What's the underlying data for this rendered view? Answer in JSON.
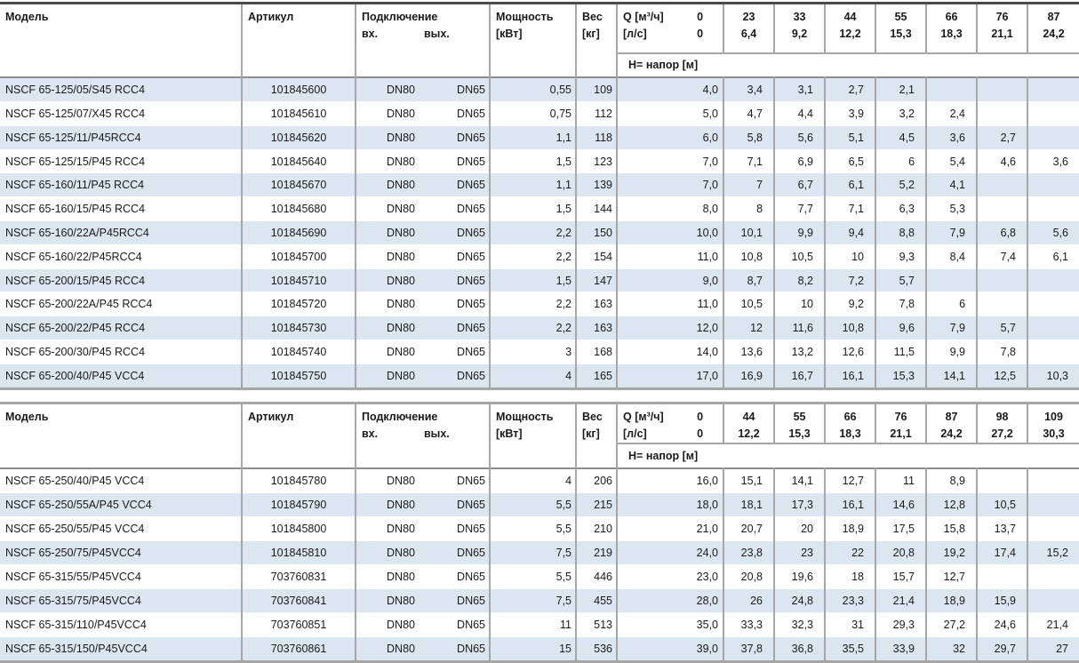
{
  "colors": {
    "row_shade": "#dce6f1",
    "grid_line": "#a6a6a6",
    "header_rule": "#8c8c8c",
    "table1_top_border": "#4a4a4a",
    "text": "#1a1a1a"
  },
  "tables": [
    {
      "headers": {
        "model": "Модель",
        "article": "Артикул",
        "connection": "Подключение",
        "inlet": "вх.",
        "outlet": "вых.",
        "power": "Мощность",
        "power_unit": "[кВт]",
        "weight": "Вес",
        "weight_unit": "[кг]",
        "q_m3": "Q [м³/ч]",
        "q_m3_zero": "0",
        "q_ls": "[л/с]",
        "q_ls_zero": "0",
        "head": "Н= напор [м]"
      },
      "flow_m3": [
        "23",
        "33",
        "44",
        "55",
        "66",
        "76",
        "87"
      ],
      "flow_ls": [
        "6,4",
        "9,2",
        "12,2",
        "15,3",
        "18,3",
        "21,1",
        "24,2"
      ],
      "first_row_shaded": true,
      "rows": [
        {
          "model": "NSCF 65-125/05/S45 RCC4",
          "article": "101845600",
          "inlet": "DN80",
          "outlet": "DN65",
          "power": "0,55",
          "weight": "109",
          "heads": [
            "4,0",
            "3,4",
            "3,1",
            "2,7",
            "2,1",
            "",
            "",
            ""
          ]
        },
        {
          "model": "NSCF 65-125/07/X45 RCC4",
          "article": "101845610",
          "inlet": "DN80",
          "outlet": "DN65",
          "power": "0,75",
          "weight": "112",
          "heads": [
            "5,0",
            "4,7",
            "4,4",
            "3,9",
            "3,2",
            "2,4",
            "",
            ""
          ]
        },
        {
          "model": "NSCF 65-125/11/P45RCC4",
          "article": "101845620",
          "inlet": "DN80",
          "outlet": "DN65",
          "power": "1,1",
          "weight": "118",
          "heads": [
            "6,0",
            "5,8",
            "5,6",
            "5,1",
            "4,5",
            "3,6",
            "2,7",
            ""
          ]
        },
        {
          "model": "NSCF 65-125/15/P45 RCC4",
          "article": "101845640",
          "inlet": "DN80",
          "outlet": "DN65",
          "power": "1,5",
          "weight": "123",
          "heads": [
            "7,0",
            "7,1",
            "6,9",
            "6,5",
            "6",
            "5,4",
            "4,6",
            "3,6"
          ]
        },
        {
          "model": "NSCF 65-160/11/P45 RCC4",
          "article": "101845670",
          "inlet": "DN80",
          "outlet": "DN65",
          "power": "1,1",
          "weight": "139",
          "heads": [
            "7,0",
            "7",
            "6,7",
            "6,1",
            "5,2",
            "4,1",
            "",
            ""
          ]
        },
        {
          "model": "NSCF 65-160/15/P45 RCC4",
          "article": "101845680",
          "inlet": "DN80",
          "outlet": "DN65",
          "power": "1,5",
          "weight": "144",
          "heads": [
            "8,0",
            "8",
            "7,7",
            "7,1",
            "6,3",
            "5,3",
            "",
            ""
          ]
        },
        {
          "model": "NSCF 65-160/22A/P45RCC4",
          "article": "101845690",
          "inlet": "DN80",
          "outlet": "DN65",
          "power": "2,2",
          "weight": "150",
          "heads": [
            "10,0",
            "10,1",
            "9,9",
            "9,4",
            "8,8",
            "7,9",
            "6,8",
            "5,6"
          ]
        },
        {
          "model": "NSCF 65-160/22/P45RCC4",
          "article": "101845700",
          "inlet": "DN80",
          "outlet": "DN65",
          "power": "2,2",
          "weight": "154",
          "heads": [
            "11,0",
            "10,8",
            "10,5",
            "10",
            "9,3",
            "8,4",
            "7,4",
            "6,1"
          ]
        },
        {
          "model": "NSCF 65-200/15/P45 RCC4",
          "article": "101845710",
          "inlet": "DN80",
          "outlet": "DN65",
          "power": "1,5",
          "weight": "147",
          "heads": [
            "9,0",
            "8,7",
            "8,2",
            "7,2",
            "5,7",
            "",
            "",
            ""
          ]
        },
        {
          "model": "NSCF 65-200/22A/P45 RCC4",
          "article": "101845720",
          "inlet": "DN80",
          "outlet": "DN65",
          "power": "2,2",
          "weight": "163",
          "heads": [
            "11,0",
            "10,5",
            "10",
            "9,2",
            "7,8",
            "6",
            "",
            ""
          ]
        },
        {
          "model": "NSCF 65-200/22/P45 RCC4",
          "article": "101845730",
          "inlet": "DN80",
          "outlet": "DN65",
          "power": "2,2",
          "weight": "163",
          "heads": [
            "12,0",
            "12",
            "11,6",
            "10,8",
            "9,6",
            "7,9",
            "5,7",
            ""
          ]
        },
        {
          "model": "NSCF 65-200/30/P45 RCC4",
          "article": "101845740",
          "inlet": "DN80",
          "outlet": "DN65",
          "power": "3",
          "weight": "168",
          "heads": [
            "14,0",
            "13,6",
            "13,2",
            "12,6",
            "11,5",
            "9,9",
            "7,8",
            ""
          ]
        },
        {
          "model": "NSCF 65-200/40/P45 VCC4",
          "article": "101845750",
          "inlet": "DN80",
          "outlet": "DN65",
          "power": "4",
          "weight": "165",
          "heads": [
            "17,0",
            "16,9",
            "16,7",
            "16,1",
            "15,3",
            "14,1",
            "12,5",
            "10,3"
          ]
        }
      ]
    },
    {
      "headers": {
        "model": "Модель",
        "article": "Артикул",
        "connection": "Подключение",
        "inlet": "вх.",
        "outlet": "вых.",
        "power": "Мощность",
        "power_unit": "[кВт]",
        "weight": "Вес",
        "weight_unit": "[кг]",
        "q_m3": "Q [м³/ч]",
        "q_m3_zero": "0",
        "q_ls": "[л/с]",
        "q_ls_zero": "0",
        "head": "Н= напор [м]"
      },
      "flow_m3": [
        "44",
        "55",
        "66",
        "76",
        "87",
        "98",
        "109"
      ],
      "flow_ls": [
        "12,2",
        "15,3",
        "18,3",
        "21,1",
        "24,2",
        "27,2",
        "30,3"
      ],
      "first_row_shaded": false,
      "rows": [
        {
          "model": "NSCF 65-250/40/P45 VCC4",
          "article": "101845780",
          "inlet": "DN80",
          "outlet": "DN65",
          "power": "4",
          "weight": "206",
          "heads": [
            "16,0",
            "15,1",
            "14,1",
            "12,7",
            "11",
            "8,9",
            "",
            ""
          ]
        },
        {
          "model": "NSCF 65-250/55A/P45 VCC4",
          "article": "101845790",
          "inlet": "DN80",
          "outlet": "DN65",
          "power": "5,5",
          "weight": "215",
          "heads": [
            "18,0",
            "18,1",
            "17,3",
            "16,1",
            "14,6",
            "12,8",
            "10,5",
            ""
          ]
        },
        {
          "model": "NSCF 65-250/55/P45 VCC4",
          "article": "101845800",
          "inlet": "DN80",
          "outlet": "DN65",
          "power": "5,5",
          "weight": "210",
          "heads": [
            "21,0",
            "20,7",
            "20",
            "18,9",
            "17,5",
            "15,8",
            "13,7",
            ""
          ]
        },
        {
          "model": "NSCF 65-250/75/P45VCC4",
          "article": "101845810",
          "inlet": "DN80",
          "outlet": "DN65",
          "power": "7,5",
          "weight": "219",
          "heads": [
            "24,0",
            "23,8",
            "23",
            "22",
            "20,8",
            "19,2",
            "17,4",
            "15,2"
          ]
        },
        {
          "model": "NSCF 65-315/55/P45VCC4",
          "article": "703760831",
          "inlet": "DN80",
          "outlet": "DN65",
          "power": "5,5",
          "weight": "446",
          "heads": [
            "23,0",
            "20,8",
            "19,6",
            "18",
            "15,7",
            "12,7",
            "",
            ""
          ]
        },
        {
          "model": "NSCF 65-315/75/P45VCC4",
          "article": "703760841",
          "inlet": "DN80",
          "outlet": "DN65",
          "power": "7,5",
          "weight": "455",
          "heads": [
            "28,0",
            "26",
            "24,8",
            "23,3",
            "21,4",
            "18,9",
            "15,9",
            ""
          ]
        },
        {
          "model": "NSCF 65-315/110/P45VCC4",
          "article": "703760851",
          "inlet": "DN80",
          "outlet": "DN65",
          "power": "11",
          "weight": "513",
          "heads": [
            "35,0",
            "33,3",
            "32,3",
            "31",
            "29,3",
            "27,2",
            "24,6",
            "21,4"
          ]
        },
        {
          "model": "NSCF 65-315/150/P45VCC4",
          "article": "703760861",
          "inlet": "DN80",
          "outlet": "DN65",
          "power": "15",
          "weight": "536",
          "heads": [
            "39,0",
            "37,8",
            "36,8",
            "35,5",
            "33,9",
            "32",
            "29,7",
            "27"
          ]
        }
      ]
    }
  ]
}
